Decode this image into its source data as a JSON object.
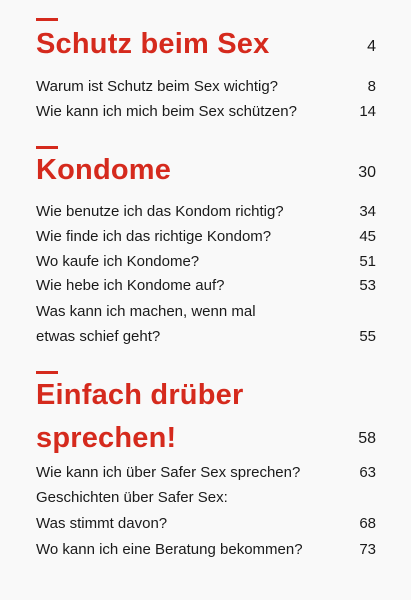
{
  "accent_color": "#d52a1d",
  "toc": {
    "sections": [
      {
        "title_lines": [
          "Schutz beim Sex"
        ],
        "page": "4",
        "entries": [
          {
            "lines": [
              "Warum ist Schutz beim Sex wichtig?"
            ],
            "page": "8"
          },
          {
            "lines": [
              "Wie kann ich mich beim Sex schützen?"
            ],
            "page": "14"
          }
        ]
      },
      {
        "title_lines": [
          "Kondome"
        ],
        "page": "30",
        "entries": [
          {
            "lines": [
              "Wie benutze ich das Kondom richtig?"
            ],
            "page": "34"
          },
          {
            "lines": [
              "Wie finde ich das richtige Kondom?"
            ],
            "page": "45"
          },
          {
            "lines": [
              "Wo kaufe ich Kondome?"
            ],
            "page": "51"
          },
          {
            "lines": [
              "Wie hebe ich Kondome auf?"
            ],
            "page": "53"
          },
          {
            "lines": [
              "Was kann ich machen, wenn mal",
              "etwas schief geht?"
            ],
            "page": "55"
          }
        ]
      },
      {
        "title_lines": [
          "Einfach drüber",
          "sprechen!"
        ],
        "page": "58",
        "entries": [
          {
            "lines": [
              "Wie kann ich über Safer Sex sprechen?"
            ],
            "page": "63"
          },
          {
            "lines": [
              "Geschichten über Safer Sex:",
              "Was stimmt davon?"
            ],
            "page": "68"
          },
          {
            "lines": [
              "Wo kann ich eine Beratung bekommen?"
            ],
            "page": "73"
          }
        ]
      }
    ]
  }
}
